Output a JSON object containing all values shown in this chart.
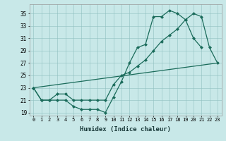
{
  "xlabel": "Humidex (Indice chaleur)",
  "bg_color": "#c8e8e8",
  "line_color": "#1a6b5a",
  "xlim": [
    -0.5,
    23.5
  ],
  "ylim": [
    18.5,
    36.5
  ],
  "xticks": [
    0,
    1,
    2,
    3,
    4,
    5,
    6,
    7,
    8,
    9,
    10,
    11,
    12,
    13,
    14,
    15,
    16,
    17,
    18,
    19,
    20,
    21,
    22,
    23
  ],
  "yticks": [
    19,
    21,
    23,
    25,
    27,
    29,
    31,
    33,
    35
  ],
  "line1_x": [
    0,
    1,
    2,
    3,
    4,
    5,
    6,
    7,
    8,
    9,
    10,
    11,
    12,
    13,
    14,
    15,
    16,
    17,
    18,
    19,
    20,
    21
  ],
  "line1_y": [
    23,
    21,
    21,
    21,
    21,
    20,
    19.5,
    19.5,
    19.5,
    19,
    21.5,
    24,
    27,
    29.5,
    30,
    34.5,
    34.5,
    35.5,
    35,
    34,
    31,
    29.5
  ],
  "line2_x": [
    0,
    1,
    2,
    3,
    4,
    5,
    6,
    7,
    8,
    9,
    10,
    11,
    12,
    13,
    14,
    15,
    16,
    17,
    18,
    19,
    20,
    21,
    22,
    23
  ],
  "line2_y": [
    23,
    21,
    21,
    22,
    22,
    21,
    21,
    21,
    21,
    21,
    23.5,
    25,
    25.5,
    26.5,
    27.5,
    29,
    30.5,
    31.5,
    32.5,
    34,
    35,
    34.5,
    29.5,
    27
  ],
  "line3_x": [
    0,
    23
  ],
  "line3_y": [
    23,
    27
  ]
}
